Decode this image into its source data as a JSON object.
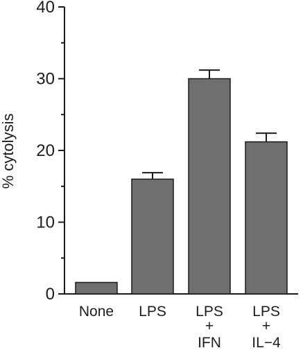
{
  "chart_data": {
    "type": "bar",
    "ylabel": "% cytolysis",
    "ylim": [
      0,
      40
    ],
    "yticks": [
      0,
      10,
      20,
      30,
      40
    ],
    "minor_ticks": true,
    "categories": [
      [
        "None"
      ],
      [
        "LPS"
      ],
      [
        "LPS",
        "+",
        "IFN"
      ],
      [
        "LPS",
        "+",
        "IL−4"
      ]
    ],
    "values": [
      1.6,
      16.0,
      30.0,
      21.2
    ],
    "errors": [
      0,
      0.9,
      1.2,
      1.2
    ],
    "bar_color": "#6f6f6f"
  }
}
